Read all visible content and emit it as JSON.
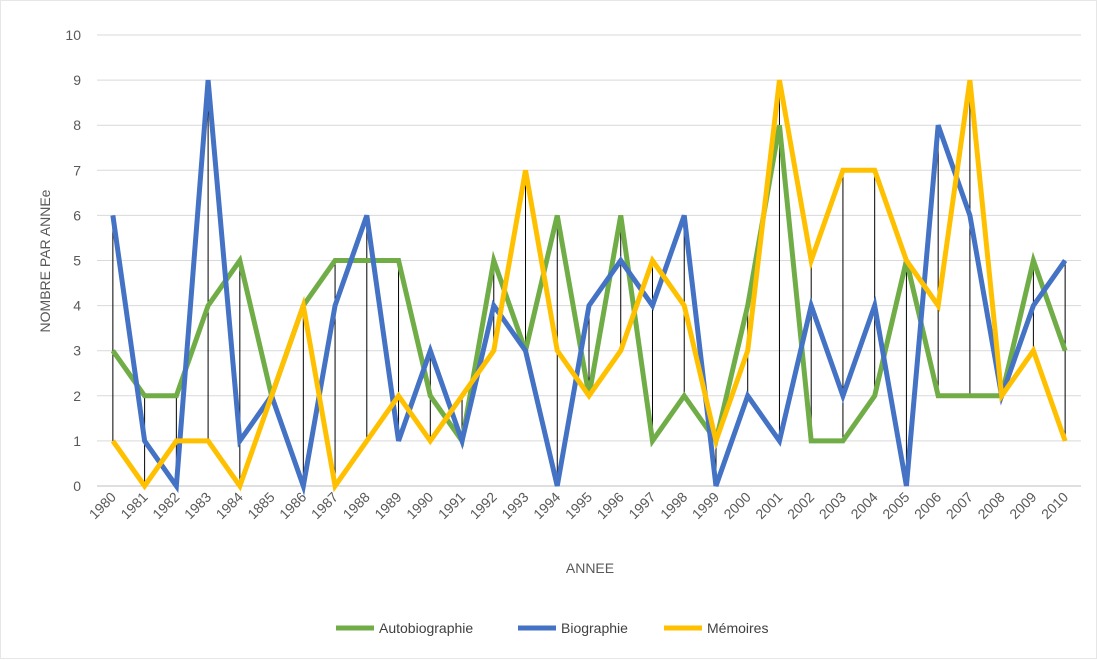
{
  "chart_data": {
    "type": "line",
    "title": "",
    "xlabel": "ANNEE",
    "ylabel": "NOMBRE PAR ANNEe",
    "ylim": [
      0,
      10
    ],
    "yticks": [
      "0",
      "1",
      "2",
      "3",
      "4",
      "5",
      "6",
      "7",
      "8",
      "9",
      "10"
    ],
    "grid": true,
    "legend_position": "bottom",
    "categories": [
      "1980",
      "1981",
      "1982",
      "1983",
      "1984",
      "1885",
      "1986",
      "1987",
      "1988",
      "1989",
      "1990",
      "1991",
      "1992",
      "1993",
      "1994",
      "1995",
      "1996",
      "1997",
      "1998",
      "1999",
      "2000",
      "2001",
      "2002",
      "2003",
      "2004",
      "2005",
      "2006",
      "2007",
      "2008",
      "2009",
      "2010"
    ],
    "series": [
      {
        "name": "Autobiographie",
        "color": "#70ad47",
        "values": [
          3,
          2,
          2,
          4,
          5,
          2,
          4,
          5,
          5,
          5,
          2,
          1,
          5,
          3,
          6,
          2,
          6,
          1,
          2,
          1,
          4,
          8,
          1,
          1,
          2,
          5,
          2,
          2,
          2,
          5,
          3
        ]
      },
      {
        "name": "Biographie",
        "color": "#4472c4",
        "values": [
          6,
          1,
          0,
          9,
          1,
          2,
          0,
          4,
          6,
          1,
          3,
          1,
          4,
          3,
          0,
          4,
          5,
          4,
          6,
          0,
          2,
          1,
          4,
          2,
          4,
          0,
          8,
          6,
          2,
          4,
          5
        ]
      },
      {
        "name": "Mémoires",
        "color": "#ffc000",
        "values": [
          1,
          0,
          1,
          1,
          0,
          2,
          4,
          0,
          1,
          2,
          1,
          2,
          3,
          7,
          3,
          2,
          3,
          5,
          4,
          1,
          3,
          9,
          5,
          7,
          7,
          5,
          4,
          9,
          2,
          3,
          1
        ]
      }
    ]
  }
}
